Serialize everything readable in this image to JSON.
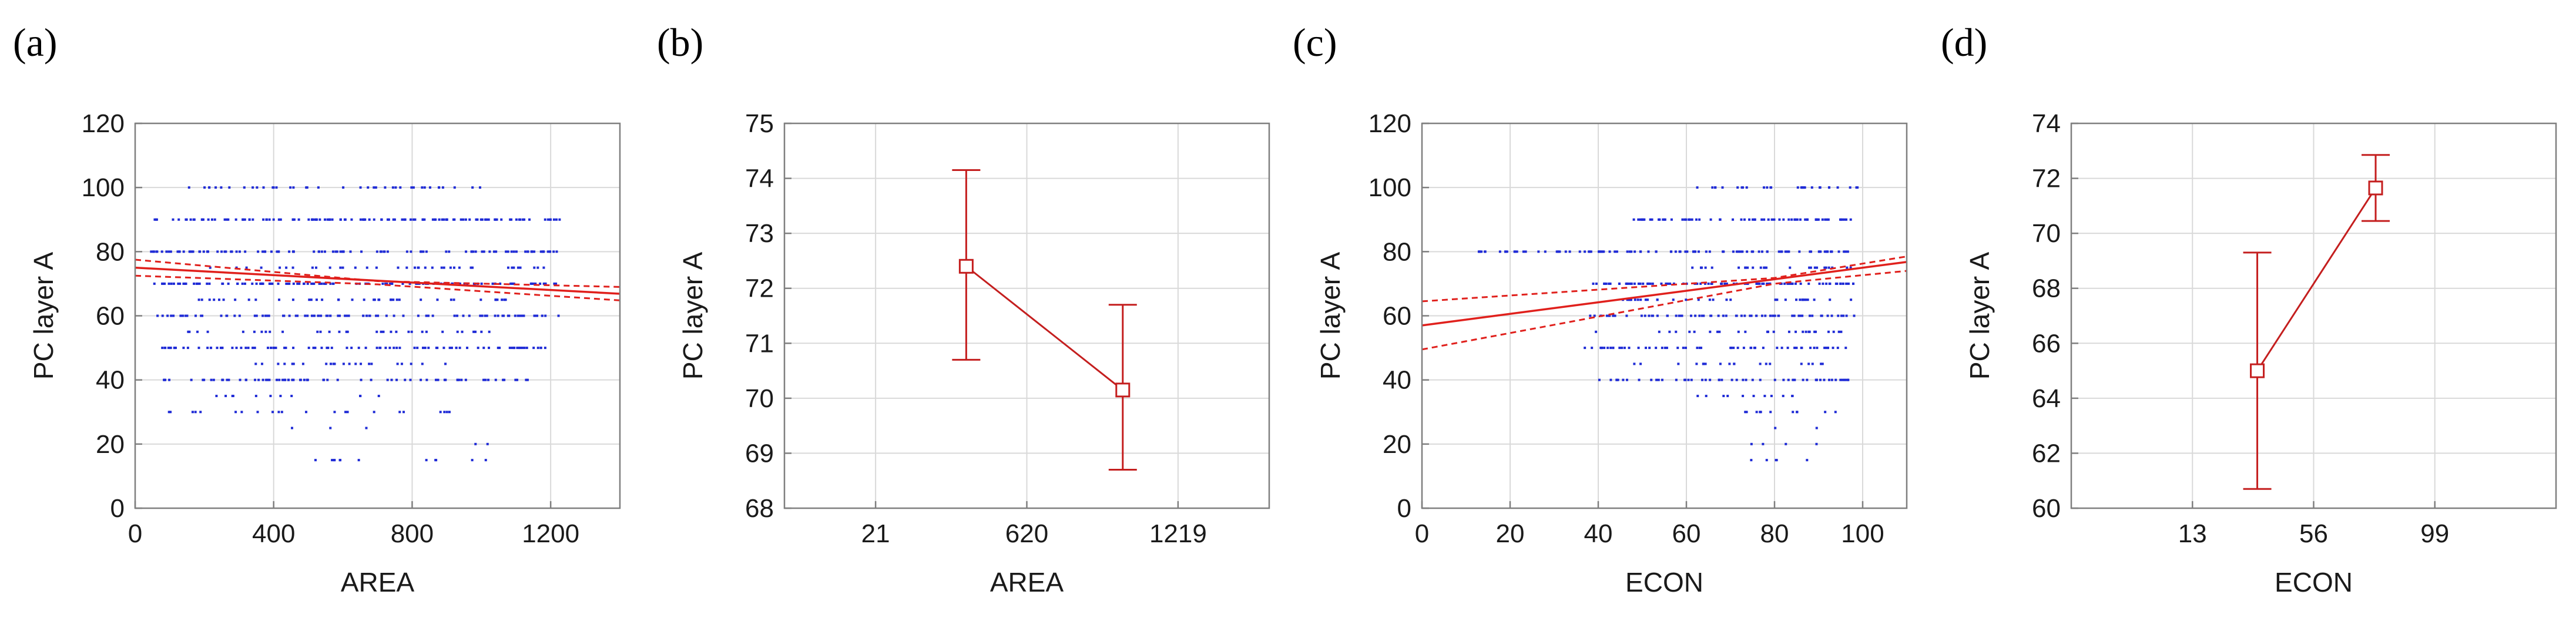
{
  "colors": {
    "points": "#1f2bd6",
    "fit": "#e0201c",
    "means": "#c41e1e",
    "grid": "#d9d9d9",
    "frame": "#7f7f7f"
  },
  "chart_data": [
    {
      "panel": "(a)",
      "type": "scatter",
      "xlabel": "AREA",
      "ylabel": "PC layer A",
      "xlim": [
        0,
        1400
      ],
      "ylim": [
        0,
        120
      ],
      "xticks": [
        0,
        400,
        800,
        1200
      ],
      "yticks": [
        0,
        20,
        40,
        60,
        80,
        100,
        120
      ],
      "grid": true,
      "fit": {
        "intercept": 75.0,
        "slope": -0.0058
      },
      "ci": {
        "upper": [
          [
            0,
            77.5
          ],
          [
            700,
            70.8
          ],
          [
            1400,
            69.0
          ]
        ],
        "lower": [
          [
            0,
            72.5
          ],
          [
            700,
            69.8
          ],
          [
            1400,
            64.8
          ]
        ]
      },
      "scatter": {
        "levels": [
          100,
          90,
          80,
          75,
          70,
          65,
          60,
          55,
          50,
          45,
          40,
          35,
          30,
          25,
          20,
          15
        ],
        "x_extent": [
          [
            50,
            1000
          ],
          [
            40,
            1220
          ],
          [
            40,
            1220
          ],
          [
            150,
            1200
          ],
          [
            40,
            1220
          ],
          [
            150,
            1100
          ],
          [
            40,
            1220
          ],
          [
            150,
            1050
          ],
          [
            60,
            1200
          ],
          [
            150,
            900
          ],
          [
            80,
            1150
          ],
          [
            200,
            800
          ],
          [
            60,
            1000
          ],
          [
            450,
            700
          ],
          [
            980,
            1020
          ],
          [
            500,
            1030
          ]
        ],
        "density": [
          0.35,
          0.85,
          0.75,
          0.3,
          0.8,
          0.35,
          0.7,
          0.3,
          0.65,
          0.25,
          0.55,
          0.15,
          0.2,
          0.1,
          0.2,
          0.2
        ]
      }
    },
    {
      "panel": "(b)",
      "type": "line",
      "xlabel": "AREA",
      "ylabel": "PC layer A",
      "xlim": [
        -340,
        1580
      ],
      "ylim": [
        68,
        75
      ],
      "xticks": [
        21,
        620,
        1219
      ],
      "yticks": [
        68,
        69,
        70,
        71,
        72,
        73,
        74,
        75
      ],
      "grid": true,
      "points": [
        {
          "x": 380,
          "mean": 72.4,
          "lower": 70.7,
          "upper": 74.15
        },
        {
          "x": 1000,
          "mean": 70.15,
          "lower": 68.7,
          "upper": 71.7
        }
      ]
    },
    {
      "panel": "(c)",
      "type": "scatter",
      "xlabel": "ECON",
      "ylabel": "PC layer A",
      "xlim": [
        0,
        110
      ],
      "ylim": [
        0,
        120
      ],
      "xticks": [
        0,
        20,
        40,
        60,
        80,
        100
      ],
      "yticks": [
        0,
        20,
        40,
        60,
        80,
        100,
        120
      ],
      "grid": true,
      "fit": {
        "intercept": 57.0,
        "slope": 0.18
      },
      "ci": {
        "upper": [
          [
            0,
            64.5
          ],
          [
            80,
            71.8
          ],
          [
            110,
            78.5
          ]
        ],
        "lower": [
          [
            0,
            49.5
          ],
          [
            80,
            70.0
          ],
          [
            110,
            74.0
          ]
        ]
      },
      "scatter": {
        "levels": [
          100,
          90,
          80,
          75,
          70,
          65,
          60,
          55,
          50,
          45,
          40,
          35,
          30,
          25,
          20,
          15
        ],
        "x_extent": [
          [
            62,
            99
          ],
          [
            48,
            98
          ],
          [
            12,
            98
          ],
          [
            60,
            98
          ],
          [
            38,
            98
          ],
          [
            45,
            98
          ],
          [
            38,
            98
          ],
          [
            38,
            96
          ],
          [
            35,
            98
          ],
          [
            45,
            96
          ],
          [
            38,
            98
          ],
          [
            60,
            95
          ],
          [
            65,
            95
          ],
          [
            80,
            90
          ],
          [
            65,
            92
          ],
          [
            70,
            90
          ]
        ],
        "density": [
          0.5,
          0.85,
          0.75,
          0.45,
          0.9,
          0.4,
          0.75,
          0.3,
          0.6,
          0.25,
          0.55,
          0.2,
          0.25,
          0.15,
          0.1,
          0.15
        ]
      }
    },
    {
      "panel": "(d)",
      "type": "line",
      "xlabel": "ECON",
      "ylabel": "PC layer A",
      "xlim": [
        -30,
        142
      ],
      "ylim": [
        60,
        74
      ],
      "xticks": [
        13,
        56,
        99
      ],
      "yticks": [
        60,
        62,
        64,
        66,
        68,
        70,
        72,
        74
      ],
      "grid": true,
      "points": [
        {
          "x": 36,
          "mean": 65.0,
          "lower": 60.7,
          "upper": 69.3
        },
        {
          "x": 78,
          "mean": 71.65,
          "lower": 70.45,
          "upper": 72.85
        }
      ]
    }
  ]
}
